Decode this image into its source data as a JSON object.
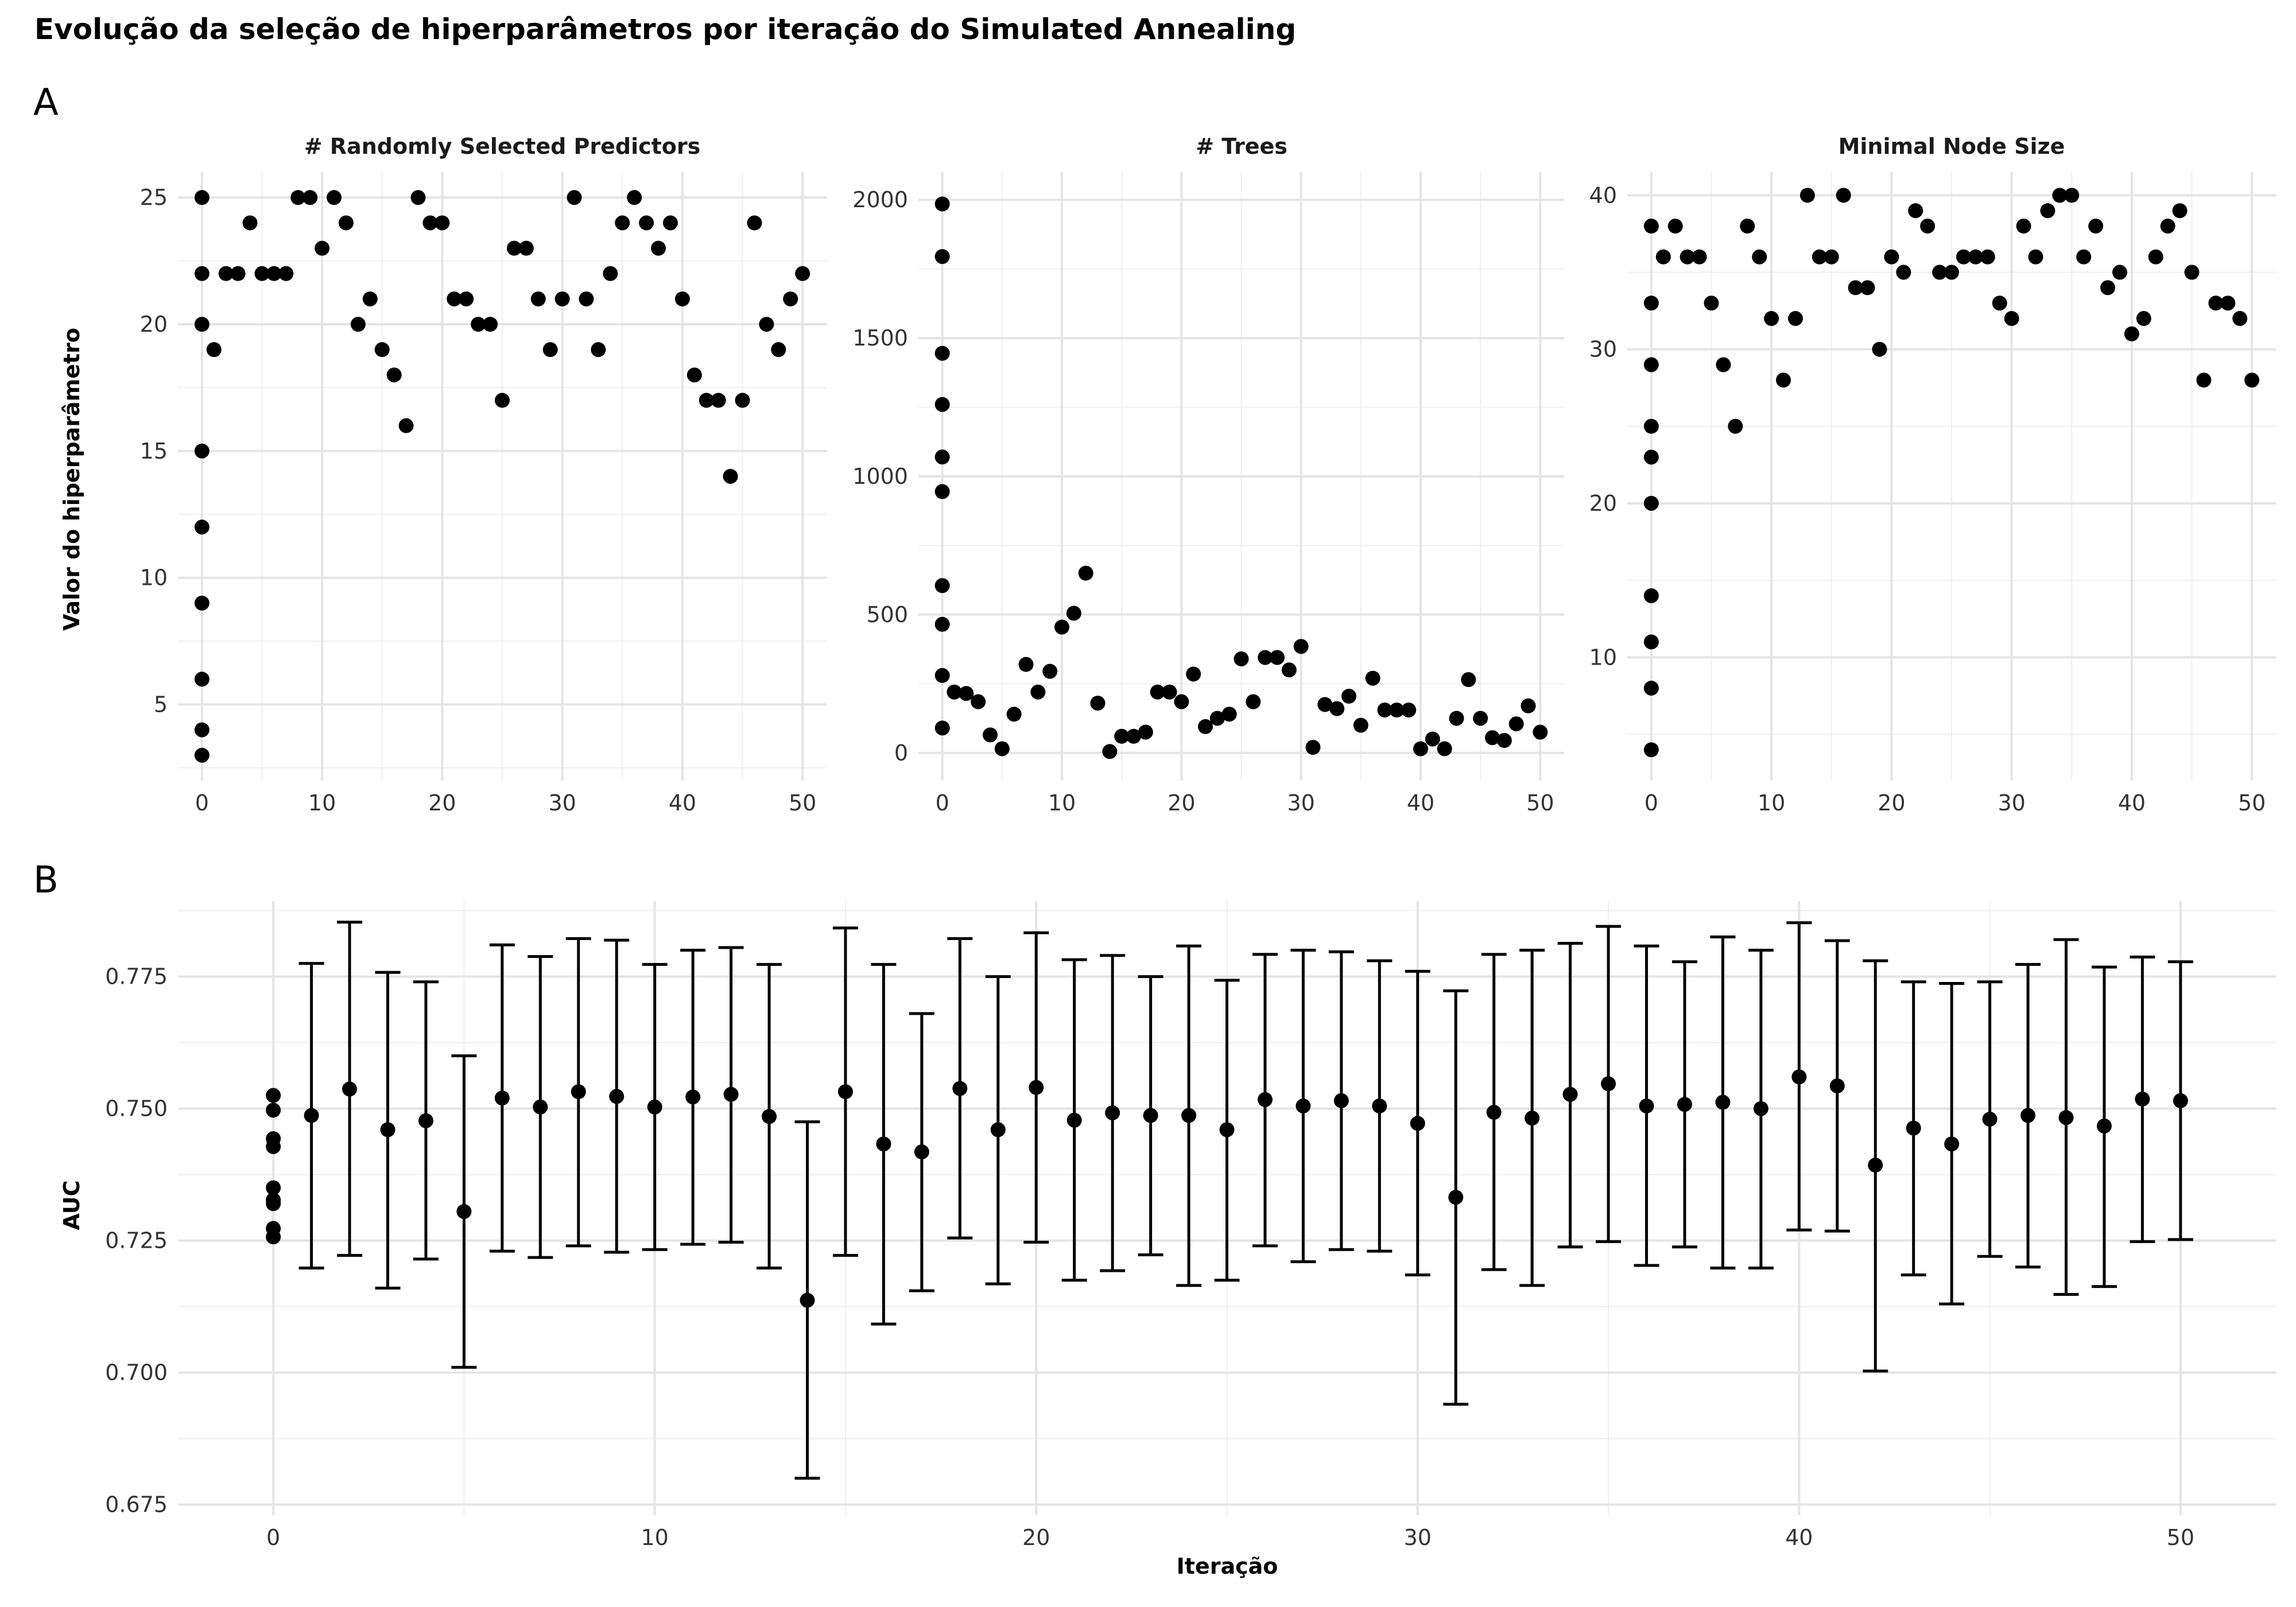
{
  "title": "Evolução da seleção de hiperparâmetros por iteração do Simulated Annealing",
  "chart_data": [
    {
      "tag": "A",
      "type": "scatter",
      "ylabel": "Valor do hiperparâmetro",
      "facets": [
        {
          "title": "# Randomly Selected Predictors",
          "ylim": [
            2,
            26
          ],
          "yticks": [
            5,
            10,
            15,
            20,
            25
          ],
          "xlim": [
            -2,
            52
          ],
          "xticks": [
            0,
            10,
            20,
            30,
            40,
            50
          ],
          "points": [
            [
              0,
              25
            ],
            [
              0,
              22
            ],
            [
              0,
              20
            ],
            [
              0,
              15
            ],
            [
              0,
              12
            ],
            [
              0,
              9
            ],
            [
              0,
              6
            ],
            [
              0,
              4
            ],
            [
              0,
              3
            ],
            [
              1,
              19
            ],
            [
              2,
              22
            ],
            [
              3,
              22
            ],
            [
              4,
              24
            ],
            [
              5,
              22
            ],
            [
              6,
              22
            ],
            [
              7,
              22
            ],
            [
              8,
              25
            ],
            [
              9,
              25
            ],
            [
              10,
              23
            ],
            [
              11,
              25
            ],
            [
              12,
              24
            ],
            [
              13,
              20
            ],
            [
              14,
              21
            ],
            [
              15,
              19
            ],
            [
              16,
              18
            ],
            [
              17,
              16
            ],
            [
              18,
              25
            ],
            [
              19,
              24
            ],
            [
              20,
              24
            ],
            [
              21,
              21
            ],
            [
              22,
              21
            ],
            [
              23,
              20
            ],
            [
              24,
              20
            ],
            [
              25,
              17
            ],
            [
              26,
              23
            ],
            [
              27,
              23
            ],
            [
              28,
              21
            ],
            [
              29,
              19
            ],
            [
              30,
              21
            ],
            [
              31,
              25
            ],
            [
              32,
              21
            ],
            [
              33,
              19
            ],
            [
              34,
              22
            ],
            [
              35,
              24
            ],
            [
              36,
              25
            ],
            [
              37,
              24
            ],
            [
              38,
              23
            ],
            [
              39,
              24
            ],
            [
              40,
              21
            ],
            [
              41,
              18
            ],
            [
              42,
              17
            ],
            [
              43,
              17
            ],
            [
              44,
              14
            ],
            [
              45,
              17
            ],
            [
              46,
              24
            ],
            [
              47,
              20
            ],
            [
              48,
              19
            ],
            [
              49,
              21
            ],
            [
              50,
              22
            ]
          ]
        },
        {
          "title": "# Trees",
          "ylim": [
            -100,
            2100
          ],
          "yticks": [
            0,
            500,
            1000,
            1500,
            2000
          ],
          "xlim": [
            -2,
            52
          ],
          "xticks": [
            0,
            10,
            20,
            30,
            40,
            50
          ],
          "points": [
            [
              0,
              1985
            ],
            [
              0,
              1795
            ],
            [
              0,
              1445
            ],
            [
              0,
              1260
            ],
            [
              0,
              1070
            ],
            [
              0,
              945
            ],
            [
              0,
              605
            ],
            [
              0,
              465
            ],
            [
              0,
              280
            ],
            [
              0,
              90
            ],
            [
              1,
              220
            ],
            [
              2,
              215
            ],
            [
              3,
              185
            ],
            [
              4,
              65
            ],
            [
              5,
              15
            ],
            [
              6,
              140
            ],
            [
              7,
              320
            ],
            [
              8,
              220
            ],
            [
              9,
              295
            ],
            [
              10,
              455
            ],
            [
              11,
              505
            ],
            [
              12,
              650
            ],
            [
              13,
              180
            ],
            [
              14,
              5
            ],
            [
              15,
              60
            ],
            [
              16,
              60
            ],
            [
              17,
              75
            ],
            [
              18,
              220
            ],
            [
              19,
              220
            ],
            [
              20,
              185
            ],
            [
              21,
              285
            ],
            [
              22,
              95
            ],
            [
              23,
              125
            ],
            [
              24,
              140
            ],
            [
              25,
              340
            ],
            [
              26,
              185
            ],
            [
              27,
              345
            ],
            [
              28,
              345
            ],
            [
              29,
              300
            ],
            [
              30,
              385
            ],
            [
              31,
              20
            ],
            [
              32,
              175
            ],
            [
              33,
              160
            ],
            [
              34,
              205
            ],
            [
              35,
              100
            ],
            [
              36,
              270
            ],
            [
              37,
              155
            ],
            [
              38,
              155
            ],
            [
              39,
              155
            ],
            [
              40,
              15
            ],
            [
              41,
              50
            ],
            [
              42,
              15
            ],
            [
              43,
              125
            ],
            [
              44,
              265
            ],
            [
              45,
              125
            ],
            [
              46,
              55
            ],
            [
              47,
              45
            ],
            [
              48,
              105
            ],
            [
              49,
              170
            ],
            [
              50,
              75
            ]
          ]
        },
        {
          "title": "Minimal Node Size",
          "ylim": [
            2,
            41.5
          ],
          "yticks": [
            10,
            20,
            30,
            40
          ],
          "xlim": [
            -2,
            52
          ],
          "xticks": [
            0,
            10,
            20,
            30,
            40,
            50
          ],
          "points": [
            [
              0,
              38
            ],
            [
              0,
              33
            ],
            [
              0,
              29
            ],
            [
              0,
              25
            ],
            [
              0,
              23
            ],
            [
              0,
              20
            ],
            [
              0,
              14
            ],
            [
              0,
              11
            ],
            [
              0,
              8
            ],
            [
              0,
              4
            ],
            [
              1,
              36
            ],
            [
              2,
              38
            ],
            [
              3,
              36
            ],
            [
              4,
              36
            ],
            [
              5,
              33
            ],
            [
              6,
              29
            ],
            [
              7,
              25
            ],
            [
              8,
              38
            ],
            [
              9,
              36
            ],
            [
              10,
              32
            ],
            [
              11,
              28
            ],
            [
              12,
              32
            ],
            [
              13,
              40
            ],
            [
              14,
              36
            ],
            [
              15,
              36
            ],
            [
              16,
              40
            ],
            [
              17,
              34
            ],
            [
              18,
              34
            ],
            [
              19,
              30
            ],
            [
              20,
              36
            ],
            [
              21,
              35
            ],
            [
              22,
              39
            ],
            [
              23,
              38
            ],
            [
              24,
              35
            ],
            [
              25,
              35
            ],
            [
              26,
              36
            ],
            [
              27,
              36
            ],
            [
              28,
              36
            ],
            [
              29,
              33
            ],
            [
              30,
              32
            ],
            [
              31,
              38
            ],
            [
              32,
              36
            ],
            [
              33,
              39
            ],
            [
              34,
              40
            ],
            [
              35,
              40
            ],
            [
              36,
              36
            ],
            [
              37,
              38
            ],
            [
              38,
              34
            ],
            [
              39,
              35
            ],
            [
              40,
              31
            ],
            [
              41,
              32
            ],
            [
              42,
              36
            ],
            [
              43,
              38
            ],
            [
              44,
              39
            ],
            [
              45,
              35
            ],
            [
              46,
              28
            ],
            [
              47,
              33
            ],
            [
              48,
              33
            ],
            [
              49,
              32
            ],
            [
              50,
              28
            ]
          ]
        }
      ]
    },
    {
      "tag": "B",
      "type": "scatter",
      "xlabel": "Iteração",
      "ylabel": "AUC",
      "xlim": [
        -2.5,
        52.5
      ],
      "ylim": [
        0.673,
        0.7893
      ],
      "xticks": [
        0,
        10,
        20,
        30,
        40,
        50
      ],
      "yticks": [
        0.675,
        0.7,
        0.725,
        0.75,
        0.775
      ],
      "ytick_labels": [
        "0.675",
        "0.700",
        "0.725",
        "0.750",
        "0.775"
      ],
      "iteration0_points": [
        0.7525,
        0.7497,
        0.7443,
        0.7428,
        0.735,
        0.7327,
        0.732,
        0.7273,
        0.7257
      ],
      "series": [
        {
          "x": 1,
          "y": 0.7487,
          "ymin": 0.7198,
          "ymax": 0.7775
        },
        {
          "x": 2,
          "y": 0.7537,
          "ymin": 0.7222,
          "ymax": 0.7853
        },
        {
          "x": 3,
          "y": 0.746,
          "ymin": 0.716,
          "ymax": 0.7758
        },
        {
          "x": 4,
          "y": 0.7477,
          "ymin": 0.7215,
          "ymax": 0.774
        },
        {
          "x": 5,
          "y": 0.7305,
          "ymin": 0.701,
          "ymax": 0.76
        },
        {
          "x": 6,
          "y": 0.752,
          "ymin": 0.723,
          "ymax": 0.781
        },
        {
          "x": 7,
          "y": 0.7503,
          "ymin": 0.7218,
          "ymax": 0.7788
        },
        {
          "x": 8,
          "y": 0.7532,
          "ymin": 0.724,
          "ymax": 0.7822
        },
        {
          "x": 9,
          "y": 0.7523,
          "ymin": 0.7228,
          "ymax": 0.7819
        },
        {
          "x": 10,
          "y": 0.7503,
          "ymin": 0.7233,
          "ymax": 0.7773
        },
        {
          "x": 11,
          "y": 0.7522,
          "ymin": 0.7243,
          "ymax": 0.78
        },
        {
          "x": 12,
          "y": 0.7527,
          "ymin": 0.7247,
          "ymax": 0.7805
        },
        {
          "x": 13,
          "y": 0.7485,
          "ymin": 0.7198,
          "ymax": 0.7773
        },
        {
          "x": 14,
          "y": 0.7137,
          "ymin": 0.68,
          "ymax": 0.7475
        },
        {
          "x": 15,
          "y": 0.7532,
          "ymin": 0.7222,
          "ymax": 0.7842
        },
        {
          "x": 16,
          "y": 0.7433,
          "ymin": 0.7092,
          "ymax": 0.7773
        },
        {
          "x": 17,
          "y": 0.7418,
          "ymin": 0.7155,
          "ymax": 0.768
        },
        {
          "x": 18,
          "y": 0.7538,
          "ymin": 0.7255,
          "ymax": 0.7822
        },
        {
          "x": 19,
          "y": 0.746,
          "ymin": 0.7168,
          "ymax": 0.775
        },
        {
          "x": 20,
          "y": 0.754,
          "ymin": 0.7247,
          "ymax": 0.7833
        },
        {
          "x": 21,
          "y": 0.7478,
          "ymin": 0.7175,
          "ymax": 0.7782
        },
        {
          "x": 22,
          "y": 0.7492,
          "ymin": 0.7193,
          "ymax": 0.779
        },
        {
          "x": 23,
          "y": 0.7487,
          "ymin": 0.7223,
          "ymax": 0.775
        },
        {
          "x": 24,
          "y": 0.7487,
          "ymin": 0.7165,
          "ymax": 0.7808
        },
        {
          "x": 25,
          "y": 0.746,
          "ymin": 0.7175,
          "ymax": 0.7743
        },
        {
          "x": 26,
          "y": 0.7517,
          "ymin": 0.724,
          "ymax": 0.7792
        },
        {
          "x": 27,
          "y": 0.7505,
          "ymin": 0.721,
          "ymax": 0.78
        },
        {
          "x": 28,
          "y": 0.7515,
          "ymin": 0.7233,
          "ymax": 0.7797
        },
        {
          "x": 29,
          "y": 0.7505,
          "ymin": 0.723,
          "ymax": 0.778
        },
        {
          "x": 30,
          "y": 0.7472,
          "ymin": 0.7185,
          "ymax": 0.776
        },
        {
          "x": 31,
          "y": 0.7332,
          "ymin": 0.694,
          "ymax": 0.7723
        },
        {
          "x": 32,
          "y": 0.7493,
          "ymin": 0.7195,
          "ymax": 0.7792
        },
        {
          "x": 33,
          "y": 0.7482,
          "ymin": 0.7165,
          "ymax": 0.78
        },
        {
          "x": 34,
          "y": 0.7527,
          "ymin": 0.7238,
          "ymax": 0.7813
        },
        {
          "x": 35,
          "y": 0.7547,
          "ymin": 0.7248,
          "ymax": 0.7845
        },
        {
          "x": 36,
          "y": 0.7505,
          "ymin": 0.7203,
          "ymax": 0.7808
        },
        {
          "x": 37,
          "y": 0.7508,
          "ymin": 0.7238,
          "ymax": 0.7778
        },
        {
          "x": 38,
          "y": 0.7512,
          "ymin": 0.7198,
          "ymax": 0.7825
        },
        {
          "x": 39,
          "y": 0.75,
          "ymin": 0.7198,
          "ymax": 0.78
        },
        {
          "x": 40,
          "y": 0.756,
          "ymin": 0.727,
          "ymax": 0.7852
        },
        {
          "x": 41,
          "y": 0.7543,
          "ymin": 0.7268,
          "ymax": 0.7818
        },
        {
          "x": 42,
          "y": 0.7393,
          "ymin": 0.7003,
          "ymax": 0.778
        },
        {
          "x": 43,
          "y": 0.7463,
          "ymin": 0.7185,
          "ymax": 0.774
        },
        {
          "x": 44,
          "y": 0.7433,
          "ymin": 0.713,
          "ymax": 0.7737
        },
        {
          "x": 45,
          "y": 0.748,
          "ymin": 0.722,
          "ymax": 0.774
        },
        {
          "x": 46,
          "y": 0.7487,
          "ymin": 0.72,
          "ymax": 0.7773
        },
        {
          "x": 47,
          "y": 0.7483,
          "ymin": 0.7148,
          "ymax": 0.782
        },
        {
          "x": 48,
          "y": 0.7467,
          "ymin": 0.7163,
          "ymax": 0.7768
        },
        {
          "x": 49,
          "y": 0.7518,
          "ymin": 0.7248,
          "ymax": 0.7787
        },
        {
          "x": 50,
          "y": 0.7515,
          "ymin": 0.7252,
          "ymax": 0.7778
        }
      ]
    }
  ]
}
